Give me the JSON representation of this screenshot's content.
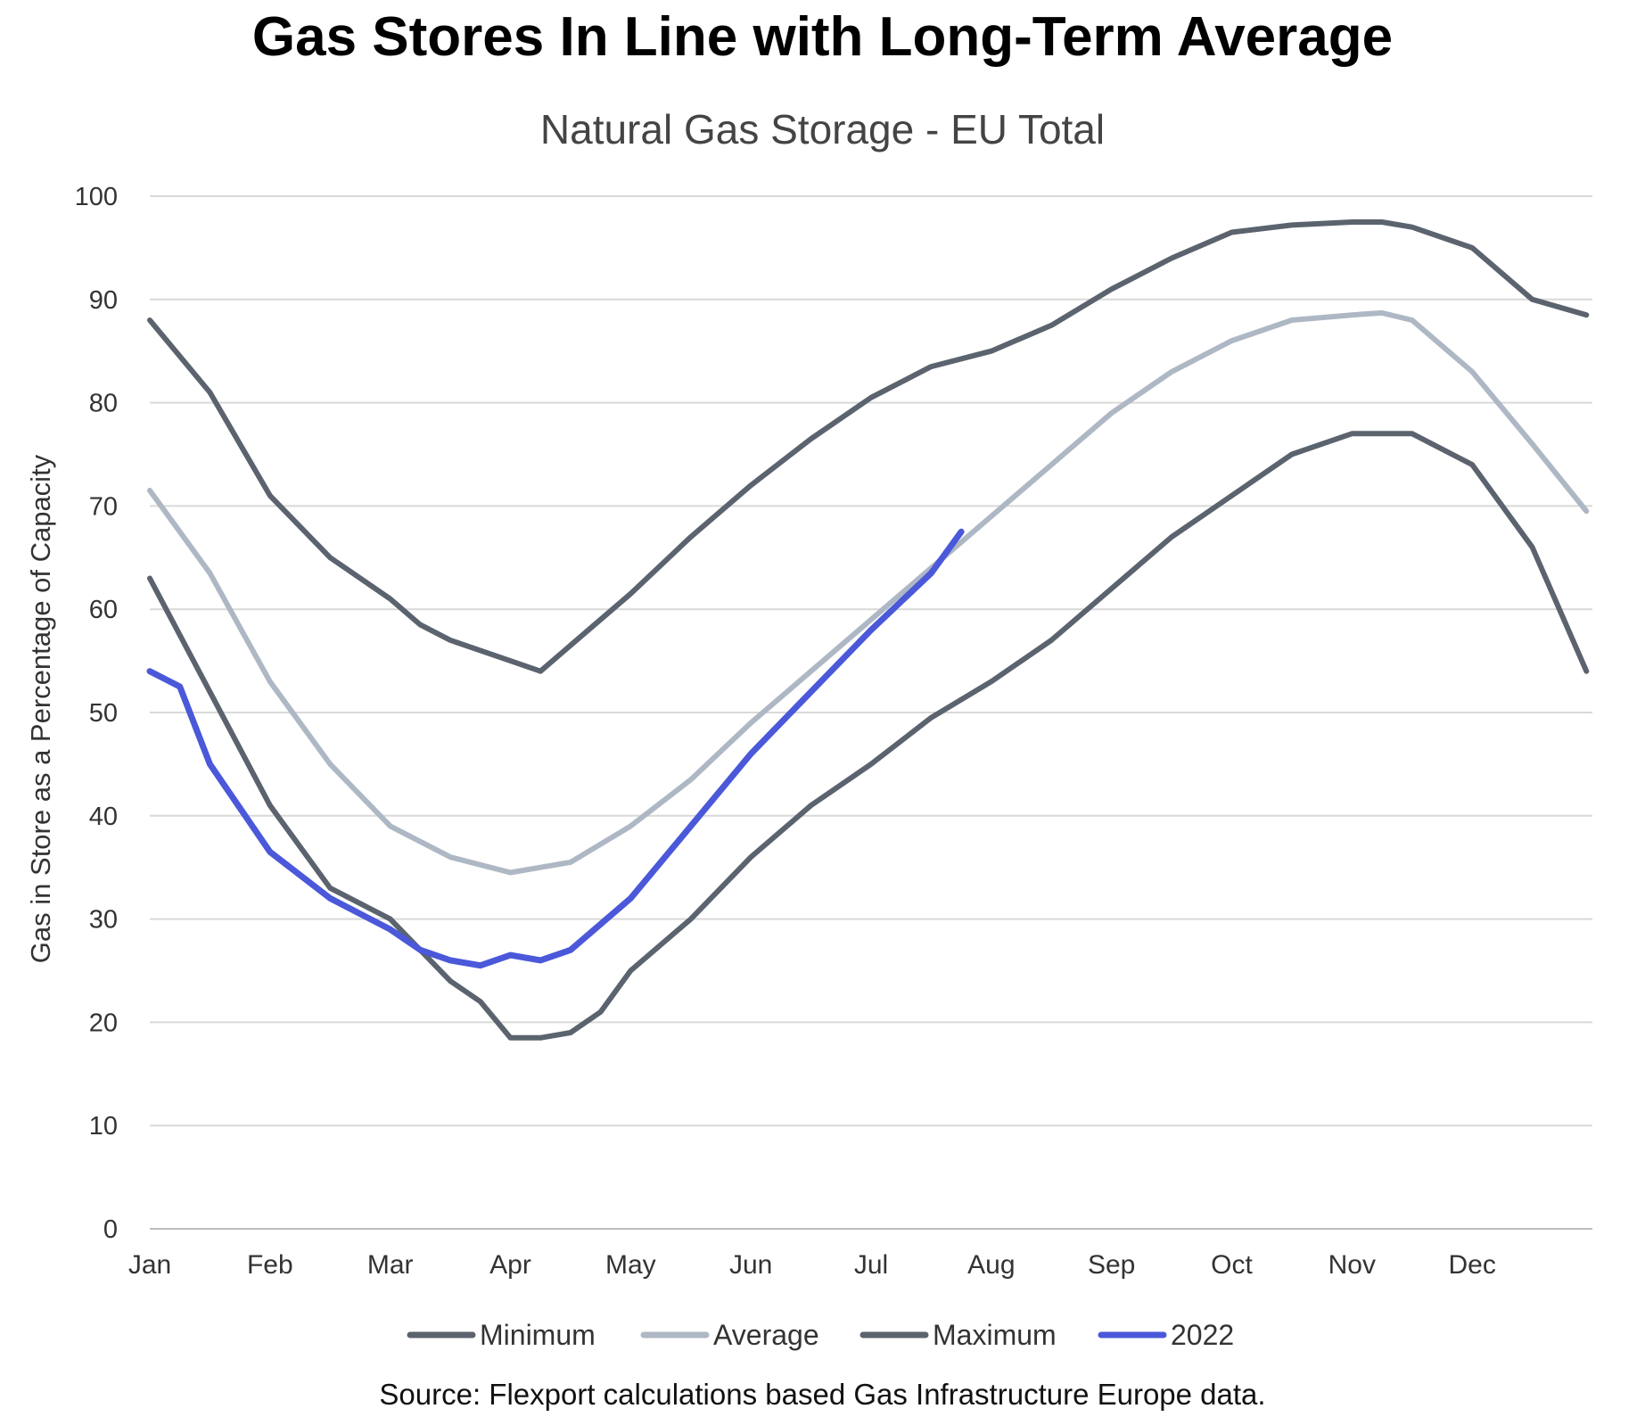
{
  "chart_data": {
    "type": "line",
    "title": "Gas Stores In Line with Long-Term Average",
    "subtitle": "Natural Gas Storage - EU Total",
    "ylabel": "Gas in Store as a Percentage of Capacity",
    "xlabel": "",
    "ylim": [
      0,
      100
    ],
    "yticks": [
      0,
      10,
      20,
      30,
      40,
      50,
      60,
      70,
      80,
      90,
      100
    ],
    "xticks": [
      "Jan",
      "Feb",
      "Mar",
      "Apr",
      "May",
      "Jun",
      "Jul",
      "Aug",
      "Sep",
      "Oct",
      "Nov",
      "Dec"
    ],
    "grid": true,
    "legend_position": "bottom",
    "source": "Source: Flexport calculations based Gas Infrastructure Europe data.",
    "colors": {
      "Minimum": "#5b636e",
      "Average": "#aeb8c4",
      "Maximum": "#5b636e",
      "2022": "#4a58d9",
      "grid": "#d9d9d9",
      "axis": "#bdbdbd"
    },
    "series": [
      {
        "name": "Minimum",
        "x": [
          0,
          0.5,
          1.0,
          1.5,
          2.0,
          2.5,
          2.75,
          3.0,
          3.25,
          3.5,
          3.75,
          4.0,
          4.5,
          5.0,
          5.5,
          6.0,
          6.5,
          7.0,
          7.5,
          8.0,
          8.5,
          9.0,
          9.5,
          10.0,
          10.5,
          11.0,
          11.5,
          11.95
        ],
        "y": [
          63,
          52,
          41,
          33,
          30,
          24,
          22,
          18.5,
          18.5,
          19,
          21,
          25,
          30,
          36,
          41,
          45,
          49.5,
          53,
          57,
          62,
          67,
          71,
          75,
          77,
          77,
          74,
          66,
          54
        ]
      },
      {
        "name": "Average",
        "x": [
          0,
          0.5,
          1.0,
          1.5,
          2.0,
          2.5,
          3.0,
          3.25,
          3.5,
          4.0,
          4.5,
          5.0,
          5.5,
          6.0,
          6.5,
          7.0,
          7.5,
          8.0,
          8.5,
          9.0,
          9.5,
          10.0,
          10.25,
          10.5,
          11.0,
          11.5,
          11.95
        ],
        "y": [
          71.5,
          63.5,
          53,
          45,
          39,
          36,
          34.5,
          35,
          35.5,
          39,
          43.5,
          49,
          54,
          59,
          64,
          69,
          74,
          79,
          83,
          86,
          88,
          88.5,
          88.7,
          88,
          83,
          76,
          69.5
        ]
      },
      {
        "name": "Maximum",
        "x": [
          0,
          0.5,
          1.0,
          1.5,
          2.0,
          2.25,
          2.5,
          3.0,
          3.25,
          3.5,
          4.0,
          4.5,
          5.0,
          5.5,
          6.0,
          6.5,
          7.0,
          7.5,
          8.0,
          8.5,
          9.0,
          9.5,
          10.0,
          10.25,
          10.5,
          11.0,
          11.5,
          11.95
        ],
        "y": [
          88,
          81,
          71,
          65,
          61,
          58.5,
          57,
          55,
          54,
          56.5,
          61.5,
          67,
          72,
          76.5,
          80.5,
          83.5,
          85,
          87.5,
          91,
          94,
          96.5,
          97.2,
          97.5,
          97.5,
          97,
          95,
          90,
          88.5
        ]
      },
      {
        "name": "2022",
        "x": [
          0,
          0.25,
          0.5,
          1.0,
          1.5,
          1.75,
          2.0,
          2.25,
          2.5,
          2.75,
          3.0,
          3.25,
          3.5,
          4.0,
          4.5,
          5.0,
          5.5,
          6.0,
          6.5,
          6.75
        ],
        "y": [
          54,
          52.5,
          45,
          36.5,
          32,
          30.5,
          29,
          27,
          26,
          25.5,
          26.5,
          26,
          27,
          32,
          39,
          46,
          52,
          58,
          63.5,
          67.5
        ]
      }
    ]
  }
}
